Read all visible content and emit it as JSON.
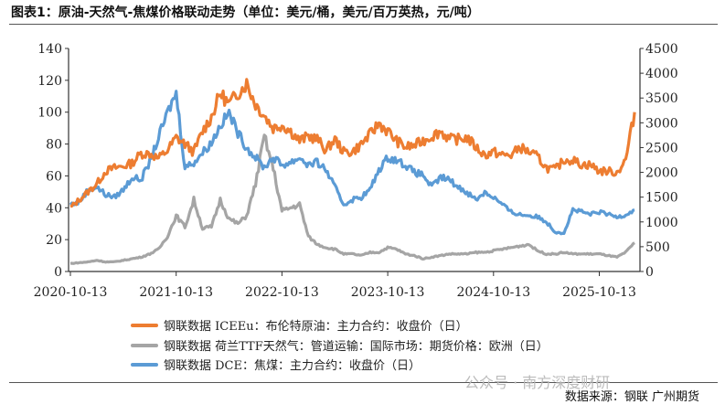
{
  "title": "图表1：原油-天然气-焦煤价格联动走势（单位：美元/桶，美元/百万英热，元/吨）",
  "source": "数据来源：钢联 广州期货",
  "watermark": "公众号 · 南方深度财研",
  "chart_data": {
    "type": "line",
    "x_start": "2020-10",
    "x_step": "month",
    "x_ticks": [
      "2020-10-13",
      "2021-10-13",
      "2022-10-13",
      "2023-10-13",
      "2024-10-13",
      "2025-10-13"
    ],
    "left_axis": {
      "ylim": [
        0,
        140
      ],
      "ticks": [
        0,
        20,
        40,
        60,
        80,
        100,
        120,
        140
      ]
    },
    "right_axis": {
      "ylim": [
        0,
        4500
      ],
      "ticks": [
        0,
        500,
        1000,
        1500,
        2000,
        2500,
        3000,
        3500,
        4000,
        4500
      ]
    },
    "series": [
      {
        "name": "钢联数据 ICEEu：布伦特原油：主力合约：收盘价（日）",
        "axis": "left",
        "color": "#ED7D31",
        "values": [
          40,
          45,
          50,
          55,
          63,
          65,
          66,
          68,
          74,
          74,
          71,
          76,
          84,
          80,
          75,
          88,
          97,
          112,
          105,
          112,
          118,
          105,
          98,
          90,
          92,
          88,
          82,
          85,
          83,
          76,
          83,
          75,
          75,
          80,
          86,
          93,
          88,
          82,
          78,
          79,
          82,
          85,
          88,
          83,
          83,
          84,
          78,
          73,
          75,
          73,
          73,
          78,
          75,
          72,
          65,
          64,
          70,
          70,
          67,
          67,
          63,
          63,
          62,
          70,
          100
        ]
      },
      {
        "name": "钢联数据 荷兰TTF天然气：管道运输：国际市场：期货价格：欧洲（日）",
        "axis": "left",
        "color": "#A5A5A5",
        "values": [
          5,
          5.5,
          6,
          7,
          6,
          6,
          7,
          8,
          9,
          11,
          14,
          22,
          35,
          28,
          45,
          27,
          28,
          45,
          33,
          30,
          35,
          55,
          85,
          65,
          38,
          40,
          42,
          22,
          17,
          15,
          14,
          11,
          11,
          10,
          12,
          12,
          15,
          14,
          11,
          10,
          8,
          9,
          10,
          11,
          11,
          11,
          12,
          12,
          13,
          14,
          15,
          16,
          17,
          13,
          11,
          11,
          12,
          11,
          11,
          11,
          11,
          10,
          9,
          12,
          18
        ]
      },
      {
        "name": "钢联数据 DCE：焦煤：主力合约：收盘价（日）",
        "axis": "right",
        "color": "#5B9BD5",
        "values": [
          1350,
          1400,
          1650,
          1700,
          1550,
          1500,
          1650,
          1900,
          1850,
          2200,
          2700,
          3200,
          3600,
          2100,
          2200,
          2400,
          2600,
          2950,
          3200,
          2800,
          2500,
          2300,
          2100,
          2300,
          2150,
          2200,
          2300,
          2150,
          2200,
          2050,
          1700,
          1350,
          1450,
          1500,
          1650,
          2050,
          2300,
          2250,
          2150,
          2000,
          1950,
          1700,
          1900,
          1850,
          1700,
          1600,
          1450,
          1600,
          1500,
          1350,
          1200,
          1150,
          1130,
          1100,
          1000,
          800,
          780,
          1250,
          1200,
          1150,
          1200,
          1150,
          1100,
          1150,
          1240
        ]
      }
    ]
  }
}
